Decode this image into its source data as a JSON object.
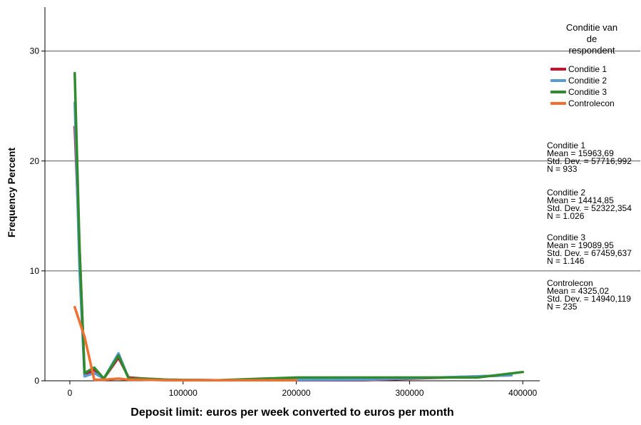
{
  "chart_data": {
    "type": "line",
    "xlabel": "Deposit limit: euros per week converted to euros per month",
    "ylabel": "Frequency Percent",
    "xlim": [
      -22000,
      415000
    ],
    "ylim": [
      0,
      34
    ],
    "x_ticks": [
      0,
      100000,
      200000,
      300000,
      400000
    ],
    "y_ticks": [
      0,
      10,
      20,
      30
    ],
    "grid": "horizontal",
    "legend_title": "Conditie van\nde\nrespondent",
    "legend_position": "right",
    "series": [
      {
        "name": "Conditie 1",
        "color": "#c8102e",
        "x": [
          4300,
          8600,
          13000,
          21600,
          30000,
          43000,
          52000,
          65000,
          86000,
          130000,
          260000,
          390000
        ],
        "y": [
          23.1,
          12.0,
          0.5,
          1.0,
          0.2,
          2.1,
          0.3,
          0.2,
          0.1,
          0.05,
          0.05,
          0.5
        ]
      },
      {
        "name": "Conditie 2",
        "color": "#5b9bd5",
        "x": [
          4300,
          8600,
          13000,
          21600,
          30000,
          43000,
          52000,
          65000,
          86000,
          130000,
          260000,
          390000
        ],
        "y": [
          25.3,
          10.0,
          0.4,
          0.7,
          0.2,
          2.5,
          0.2,
          0.1,
          0.1,
          0.05,
          0.1,
          0.5
        ]
      },
      {
        "name": "Conditie 3",
        "color": "#2e8b2e",
        "x": [
          4300,
          8600,
          13000,
          21600,
          30000,
          43000,
          52000,
          65000,
          86000,
          130000,
          200000,
          260000,
          360000,
          400000
        ],
        "y": [
          28.0,
          12.0,
          0.7,
          1.2,
          0.2,
          2.3,
          0.2,
          0.2,
          0.1,
          0.05,
          0.3,
          0.3,
          0.3,
          0.8
        ]
      },
      {
        "name": "Controlecon",
        "color": "#f07030",
        "x": [
          4300,
          13000,
          21600,
          30000,
          43000,
          52000,
          65000,
          86000,
          130000,
          200000
        ],
        "y": [
          6.7,
          4.0,
          0.1,
          0.1,
          0.2,
          0.1,
          0.1,
          0.05,
          0.05,
          0.05
        ]
      }
    ]
  },
  "stats": [
    {
      "name": "Conditie 1",
      "mean": "Mean = 15963,69",
      "sd": "Std. Dev. = 57716,992",
      "n": "N = 933"
    },
    {
      "name": "Conditie 2",
      "mean": "Mean = 14414,85",
      "sd": "Std. Dev. = 52322,354",
      "n": "N = 1.026"
    },
    {
      "name": "Conditie 3",
      "mean": "Mean = 19089,95",
      "sd": "Std. Dev. = 67459,637",
      "n": "N = 1.146"
    },
    {
      "name": "Controlecon",
      "mean": "Mean = 4325,02",
      "sd": "Std. Dev. = 14940,119",
      "n": "N = 235"
    }
  ]
}
